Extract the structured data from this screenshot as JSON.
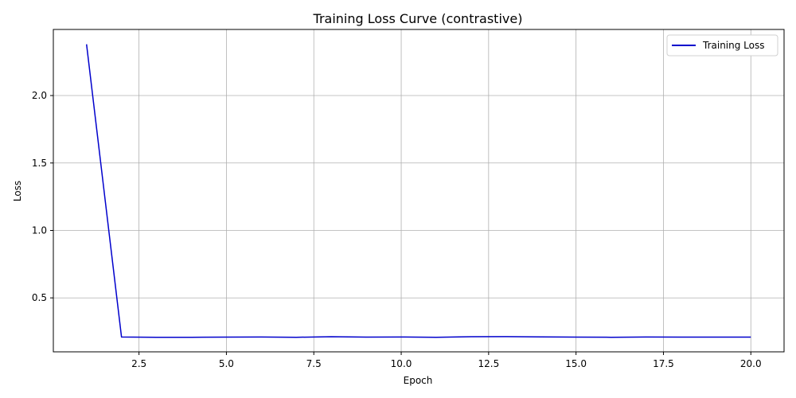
{
  "chart_data": {
    "type": "line",
    "title": "Training Loss Curve (contrastive)",
    "xlabel": "Epoch",
    "ylabel": "Loss",
    "xlim": [
      0.05,
      20.95
    ],
    "ylim": [
      0.1,
      2.49
    ],
    "xticks": [
      2.5,
      5.0,
      7.5,
      10.0,
      12.5,
      15.0,
      17.5,
      20.0
    ],
    "xtick_labels": [
      "2.5",
      "5.0",
      "7.5",
      "10.0",
      "12.5",
      "15.0",
      "17.5",
      "20.0"
    ],
    "yticks": [
      0.5,
      1.0,
      1.5,
      2.0
    ],
    "ytick_labels": [
      "0.5",
      "1.0",
      "1.5",
      "2.0"
    ],
    "grid": true,
    "legend_position": "top-right",
    "series": [
      {
        "name": "Training Loss",
        "color": "#0000cc",
        "x": [
          1,
          2,
          3,
          4,
          5,
          6,
          7,
          8,
          9,
          10,
          11,
          12,
          13,
          14,
          15,
          16,
          17,
          18,
          19,
          20
        ],
        "y": [
          2.38,
          0.21,
          0.208,
          0.208,
          0.209,
          0.21,
          0.208,
          0.212,
          0.209,
          0.21,
          0.208,
          0.212,
          0.213,
          0.211,
          0.209,
          0.208,
          0.21,
          0.209,
          0.209,
          0.209
        ]
      }
    ]
  }
}
